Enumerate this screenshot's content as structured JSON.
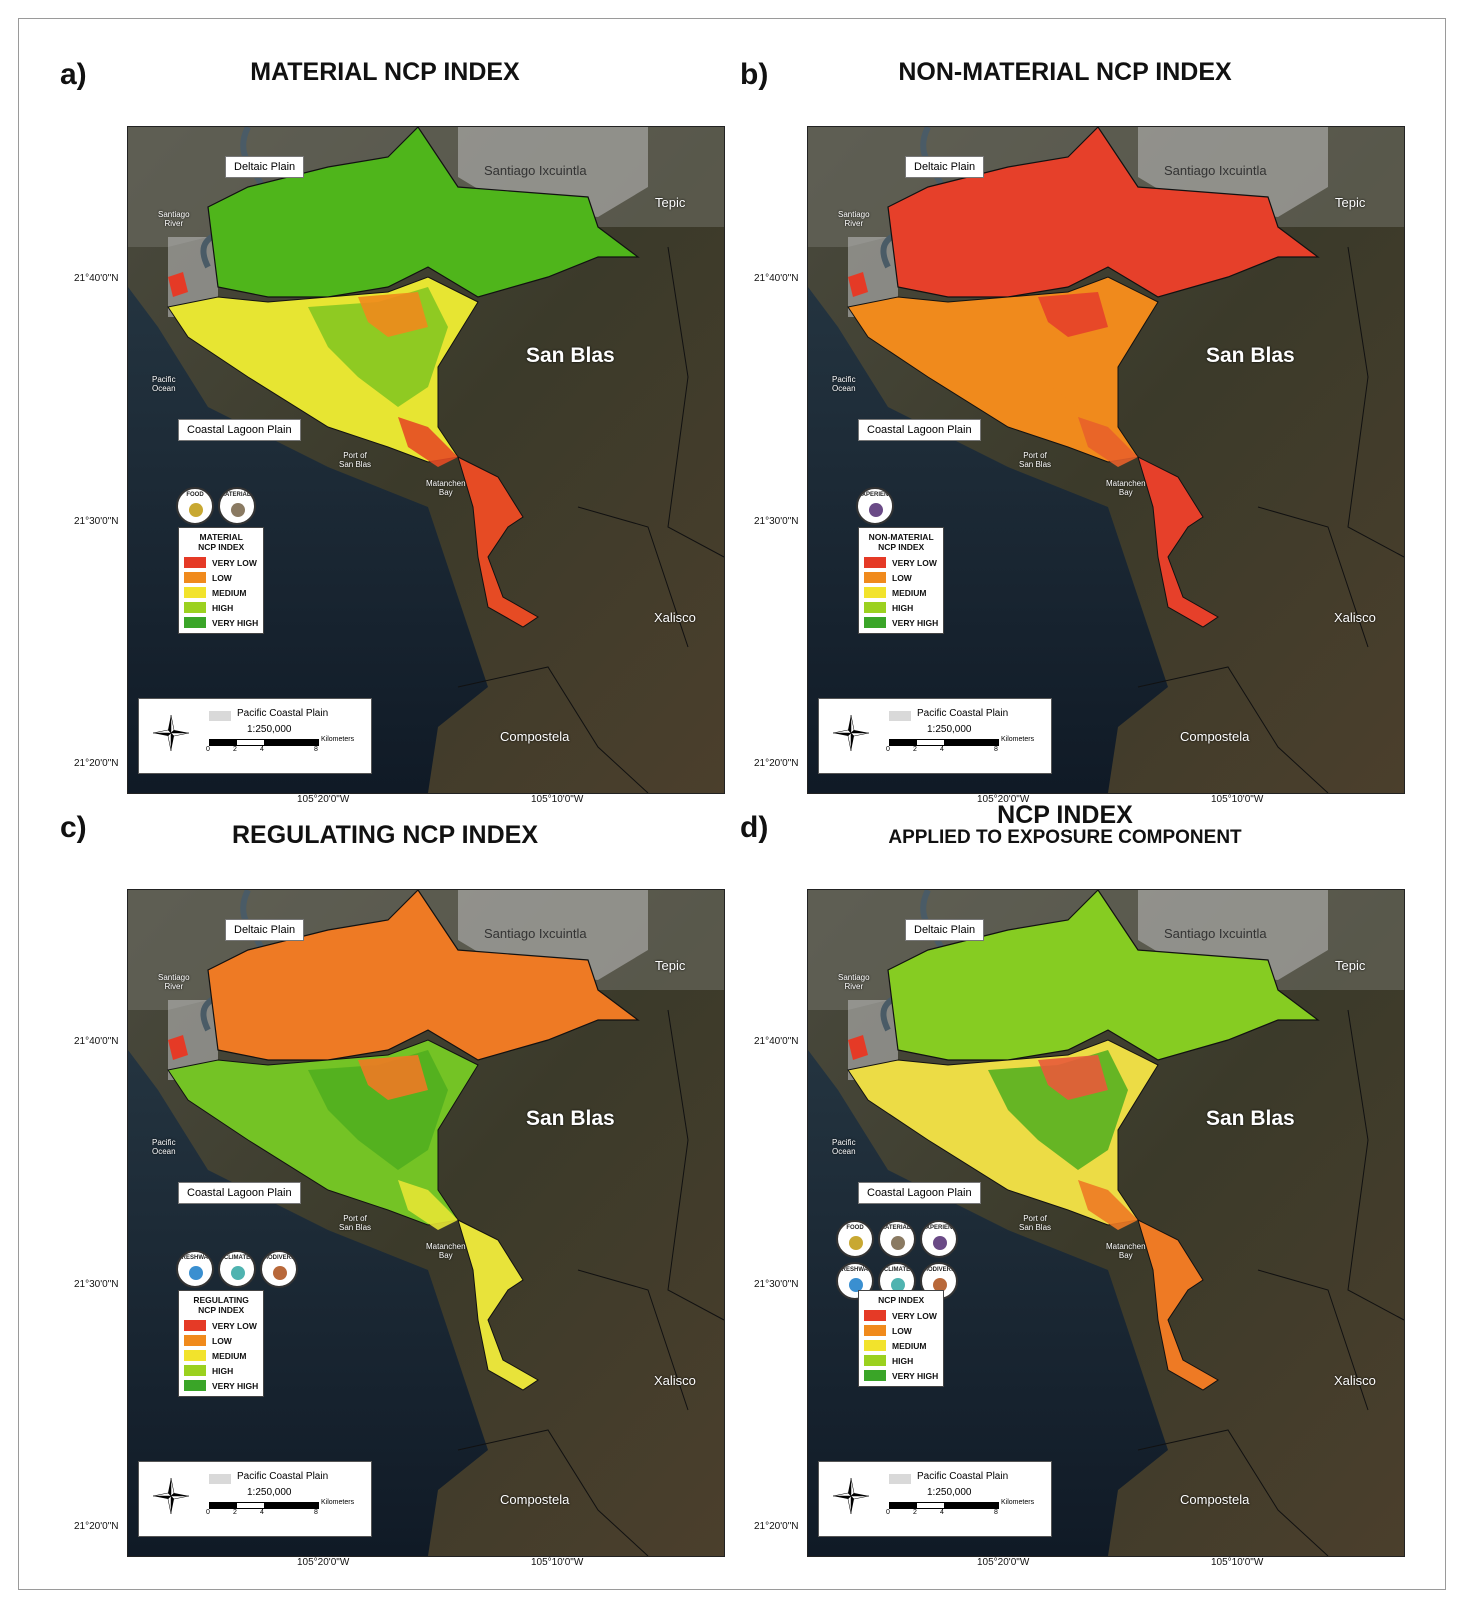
{
  "panels": [
    {
      "letter": "a)",
      "title": "MATERIAL NCP INDEX",
      "subtitle": "",
      "legend_title": "MATERIAL\nNCP INDEX",
      "icons": [
        {
          "name": "food",
          "label": "FOOD",
          "color": "#c8a832"
        },
        {
          "name": "materials",
          "label": "MATERIALS",
          "color": "#8a7a62"
        }
      ],
      "palette": {
        "delta": "#4fb51b",
        "lagoon": "#e7e532",
        "lagoon2": "#7fc520",
        "lagoon3": "#f08a1c",
        "lagoon4": "#e64b24",
        "south": "#e64b24"
      }
    },
    {
      "letter": "b)",
      "title": "NON-MATERIAL NCP INDEX",
      "subtitle": "",
      "legend_title": "NON-MATERIAL\nNCP INDEX",
      "icons": [
        {
          "name": "experiences",
          "label": "EXPERIENCES",
          "color": "#6a4a86"
        }
      ],
      "palette": {
        "delta": "#e6402a",
        "lagoon": "#f08a1c",
        "lagoon2": "#f08a1c",
        "lagoon3": "#e6402a",
        "lagoon4": "#e8612a",
        "south": "#e6402a"
      }
    },
    {
      "letter": "c)",
      "title": "REGULATING NCP INDEX",
      "subtitle": "",
      "legend_title": "REGULATING\nNCP INDEX",
      "icons": [
        {
          "name": "freshwater",
          "label": "FRESHWATER",
          "color": "#3a8fd0"
        },
        {
          "name": "climate",
          "label": "CLIMATE",
          "color": "#4fb3b0"
        },
        {
          "name": "biodiversity",
          "label": "BIODIVERSITY",
          "color": "#b8683a"
        }
      ],
      "palette": {
        "delta": "#ee7a24",
        "lagoon": "#74c325",
        "lagoon2": "#4fae1e",
        "lagoon3": "#ee7a24",
        "lagoon4": "#e5e534",
        "south": "#e8e33a"
      }
    },
    {
      "letter": "d)",
      "title": "NCP INDEX",
      "subtitle": "APPLIED TO EXPOSURE COMPONENT",
      "legend_title": "NCP INDEX",
      "icons": [
        {
          "name": "food",
          "label": "FOOD",
          "color": "#c8a832"
        },
        {
          "name": "materials",
          "label": "MATERIALS",
          "color": "#8a7a62"
        },
        {
          "name": "experiences",
          "label": "EXPERIENCES",
          "color": "#6a4a86"
        },
        {
          "name": "freshwater",
          "label": "FRESHWATER",
          "color": "#3a8fd0"
        },
        {
          "name": "climate",
          "label": "CLIMATE",
          "color": "#4fb3b0"
        },
        {
          "name": "biodiversity",
          "label": "BIODIVERSITY",
          "color": "#b8683a"
        }
      ],
      "palette": {
        "delta": "#86cc22",
        "lagoon": "#ecdc45",
        "lagoon2": "#4fae1e",
        "lagoon3": "#e85a3a",
        "lagoon4": "#ee7a24",
        "south": "#ee7a24"
      }
    }
  ],
  "legend_classes": [
    {
      "label": "VERY LOW",
      "color": "#e53a26"
    },
    {
      "label": "LOW",
      "color": "#f08a1c"
    },
    {
      "label": "MEDIUM",
      "color": "#f2e32c"
    },
    {
      "label": "HIGH",
      "color": "#9bd11f"
    },
    {
      "label": "VERY HIGH",
      "color": "#3aa528"
    }
  ],
  "place_labels": {
    "deltaic_plain": "Deltaic Plain",
    "coastal_lagoon_plain": "Coastal Lagoon Plain",
    "santiago_ixcuintla": "Santiago Ixcuintla",
    "tepic": "Tepic",
    "santiago_river": "Santiago\nRiver",
    "san_blas": "San Blas",
    "pacific_ocean": "Pacific\nOcean",
    "port_of_san_blas": "Port of\nSan Blas",
    "matanchen_bay": "Matanchen\nBay",
    "xalisco": "Xalisco",
    "compostela": "Compostela"
  },
  "lat_labels": [
    "21°40'0\"N",
    "21°30'0\"N",
    "21°20'0\"N"
  ],
  "lon_labels": [
    "105°20'0\"W",
    "105°10'0\"W"
  ],
  "scale": {
    "pcp_label": "Pacific Coastal Plain",
    "ratio": "1:250,000",
    "ticks": [
      "0",
      "2",
      "4",
      "8"
    ],
    "unit": "Kilometers",
    "pcp_color": "#d9d9d9"
  }
}
